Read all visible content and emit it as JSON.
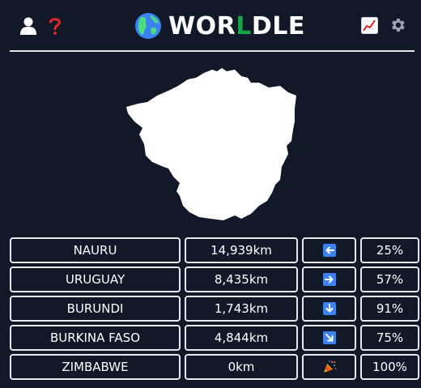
{
  "header": {
    "title_prefix": "WOR",
    "title_highlight": "L",
    "title_suffix": "DLE",
    "accent_color": "#16a34a",
    "left_icons": [
      "user-icon",
      "help-icon"
    ],
    "right_icons": [
      "stats-chart-icon",
      "settings-gear-icon"
    ]
  },
  "target_shape": {
    "country_outline": "zimbabwe-silhouette"
  },
  "guesses": [
    {
      "country": "NAURU",
      "distance": "14,939km",
      "direction": "left-arrow",
      "proximity": "25%"
    },
    {
      "country": "URUGUAY",
      "distance": "8,435km",
      "direction": "right-arrow",
      "proximity": "57%"
    },
    {
      "country": "BURUNDI",
      "distance": "1,743km",
      "direction": "down-arrow",
      "proximity": "91%"
    },
    {
      "country": "BURKINA FASO",
      "distance": "4,844km",
      "direction": "down-right-arrow",
      "proximity": "75%"
    },
    {
      "country": "ZIMBABWE",
      "distance": "0km",
      "direction": "party-popper",
      "proximity": "100%"
    }
  ]
}
